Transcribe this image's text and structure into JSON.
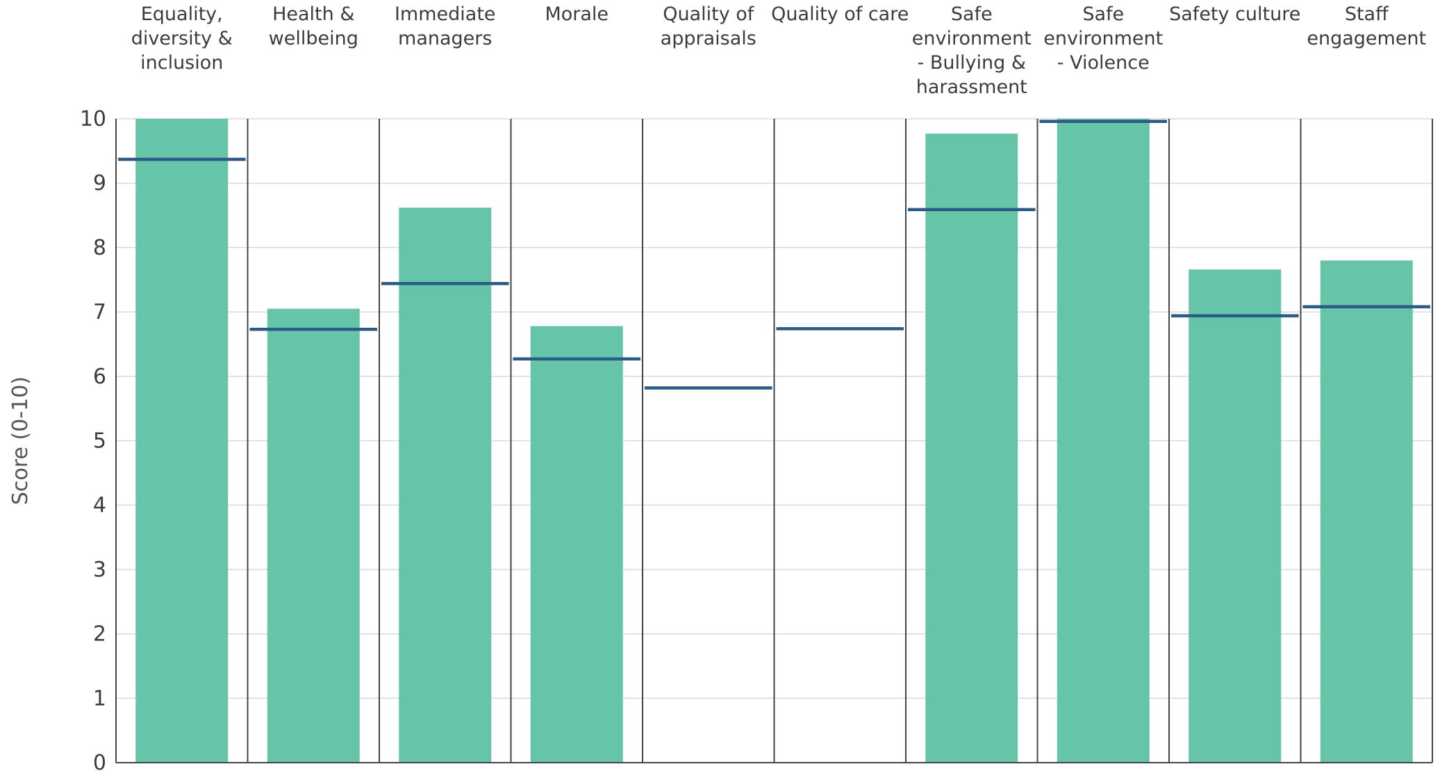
{
  "chart_data": {
    "type": "bar",
    "ylabel": "Score (0-10)",
    "ylim": [
      0,
      10
    ],
    "yticks": [
      "0",
      "1",
      "2",
      "3",
      "4",
      "5",
      "6",
      "7",
      "8",
      "9",
      "10"
    ],
    "grid": true,
    "categories": [
      [
        "Equality,",
        "diversity &",
        "inclusion"
      ],
      [
        "Health &",
        "wellbeing"
      ],
      [
        "Immediate",
        "managers"
      ],
      [
        "Morale"
      ],
      [
        "Quality of",
        "appraisals"
      ],
      [
        "Quality of care"
      ],
      [
        "Safe",
        "environment",
        "- Bullying &",
        "harassment"
      ],
      [
        "Safe",
        "environment",
        "- Violence"
      ],
      [
        "Safety culture"
      ],
      [
        "Staff",
        "engagement"
      ]
    ],
    "series": [
      {
        "type": "bar",
        "values": [
          10.0,
          7.05,
          8.62,
          6.78,
          null,
          null,
          9.77,
          10.0,
          7.66,
          7.8
        ]
      },
      {
        "type": "marker-line",
        "values": [
          9.37,
          6.73,
          7.44,
          6.27,
          5.82,
          6.74,
          8.59,
          9.96,
          6.94,
          7.08
        ]
      }
    ],
    "colors": {
      "bar": "#66c4a8",
      "marker": "#2a5a85",
      "grid": "#d9d9d9",
      "divider": "#444444"
    }
  }
}
